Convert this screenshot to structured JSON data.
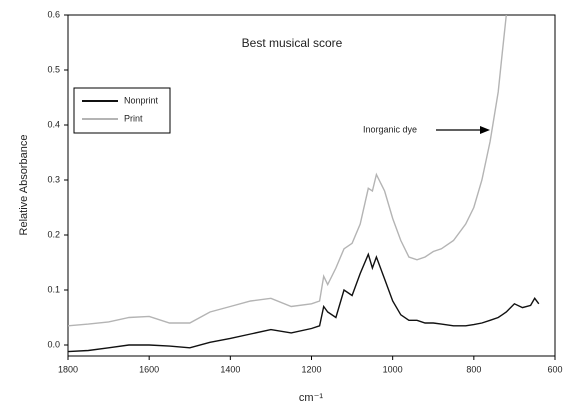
{
  "chart_data": {
    "type": "line",
    "title": "Best musical score",
    "xlabel": "cm⁻¹",
    "ylabel": "Relative Absorbance",
    "annotations": [
      "Inorganic dye"
    ],
    "x": [
      1800,
      1750,
      1700,
      1650,
      1600,
      1550,
      1500,
      1450,
      1400,
      1350,
      1300,
      1250,
      1200,
      1180,
      1170,
      1160,
      1140,
      1120,
      1100,
      1080,
      1060,
      1050,
      1040,
      1020,
      1000,
      980,
      960,
      940,
      920,
      900,
      880,
      850,
      820,
      800,
      780,
      760,
      740,
      730,
      720,
      700,
      680,
      660,
      650,
      640
    ],
    "series": [
      {
        "name": "Nonprint",
        "color": "#111111",
        "values": [
          -0.012,
          -0.01,
          -0.005,
          0,
          0,
          -0.002,
          -0.005,
          0.005,
          0.012,
          0.02,
          0.028,
          0.022,
          0.03,
          0.035,
          0.07,
          0.06,
          0.05,
          0.1,
          0.09,
          0.13,
          0.165,
          0.14,
          0.16,
          0.12,
          0.08,
          0.055,
          0.045,
          0.045,
          0.04,
          0.04,
          0.038,
          0.035,
          0.035,
          0.037,
          0.04,
          0.045,
          0.05,
          0.055,
          0.06,
          0.075,
          0.068,
          0.072,
          0.085,
          0.075
        ]
      },
      {
        "name": "Print",
        "color": "#b4b4b4",
        "values": [
          0.035,
          0.038,
          0.042,
          0.05,
          0.052,
          0.04,
          0.04,
          0.06,
          0.07,
          0.08,
          0.085,
          0.07,
          0.075,
          0.08,
          0.125,
          0.11,
          0.14,
          0.175,
          0.185,
          0.22,
          0.285,
          0.28,
          0.31,
          0.28,
          0.23,
          0.19,
          0.16,
          0.155,
          0.16,
          0.17,
          0.175,
          0.19,
          0.22,
          0.25,
          0.3,
          0.37,
          0.46,
          0.53,
          0.6,
          null,
          null,
          null,
          null,
          null
        ]
      }
    ],
    "xlim": [
      1800,
      600
    ],
    "xticks": [
      1800,
      1600,
      1400,
      1200,
      1000,
      800,
      600
    ],
    "ylim": [
      -0.02,
      0.6
    ],
    "yticks": [
      {
        "value": 0,
        "label": "0.0"
      },
      0.1,
      0.2,
      0.3,
      0.4,
      0.5,
      0.6
    ],
    "legend": "upper left"
  }
}
